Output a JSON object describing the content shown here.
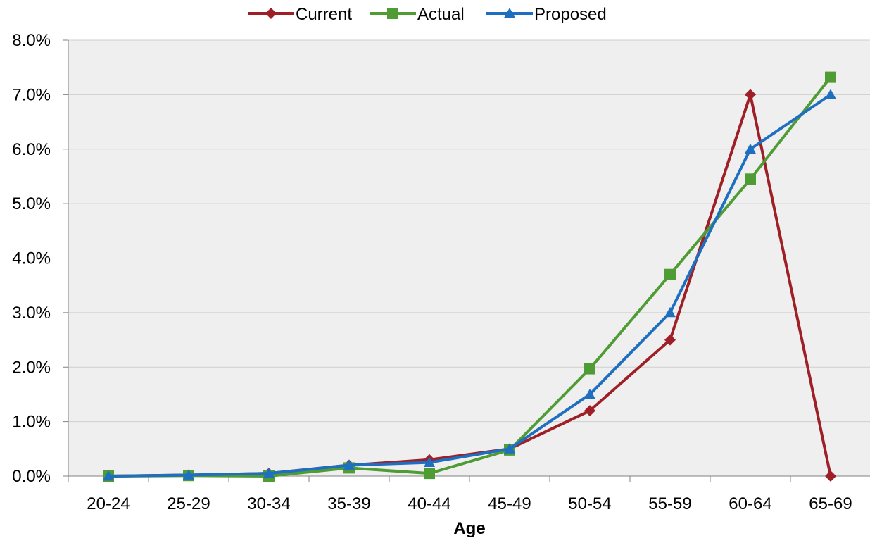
{
  "chart_data": {
    "type": "line",
    "xlabel": "Age",
    "ylabel": "",
    "categories": [
      "20-24",
      "25-29",
      "30-34",
      "35-39",
      "40-44",
      "45-49",
      "50-54",
      "55-59",
      "60-64",
      "65-69"
    ],
    "y_ticks": [
      "0.0%",
      "1.0%",
      "2.0%",
      "3.0%",
      "4.0%",
      "5.0%",
      "6.0%",
      "7.0%",
      "8.0%"
    ],
    "ylim": [
      0,
      8
    ],
    "y_unit": "percent",
    "grid": "horizontal",
    "legend_position": "top",
    "series": [
      {
        "name": "Current",
        "color": "#9e1f26",
        "marker": "diamond",
        "values": [
          0.0,
          0.02,
          0.05,
          0.2,
          0.3,
          0.5,
          1.2,
          2.5,
          7.0,
          0.0
        ]
      },
      {
        "name": "Actual",
        "color": "#4e9c33",
        "marker": "square",
        "values": [
          0.0,
          0.01,
          0.0,
          0.15,
          0.05,
          0.48,
          1.97,
          3.7,
          5.45,
          7.32
        ]
      },
      {
        "name": "Proposed",
        "color": "#1e6fbf",
        "marker": "triangle",
        "values": [
          0.0,
          0.02,
          0.05,
          0.2,
          0.25,
          0.5,
          1.5,
          3.0,
          6.0,
          7.0
        ]
      }
    ]
  }
}
